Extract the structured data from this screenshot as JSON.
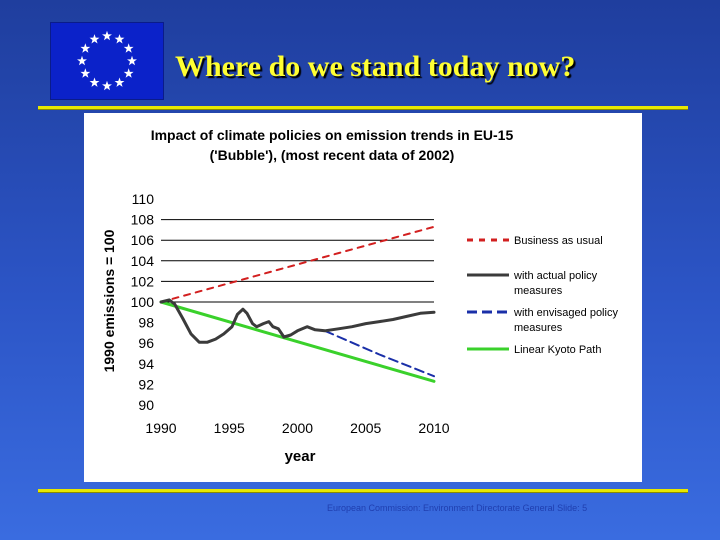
{
  "slide": {
    "title": "Where do we stand today now?",
    "footer": "European Commission: Environment Directorate General Slide: 5"
  },
  "colors": {
    "background_top": "#1f3e9e",
    "title": "#ffff33",
    "rule": "#e8e800",
    "flag_blue": "#0b22c9",
    "flag_star": "#ffffff"
  },
  "chart_data": {
    "type": "line",
    "title_line1": "Impact of climate policies on emission trends in EU-15",
    "title_line2": "('Bubble'), (most recent data of 2002)",
    "xlabel": "year",
    "ylabel": "1990 emissions = 100",
    "xlim": [
      1990,
      2010
    ],
    "ylim": [
      90,
      110
    ],
    "x_ticks": [
      "1990",
      "1995",
      "2000",
      "2005",
      "2010"
    ],
    "y_ticks": [
      "110",
      "108",
      "106",
      "104",
      "102",
      "100",
      "98",
      "96",
      "94",
      "92",
      "90"
    ],
    "gridlines": [
      100,
      102,
      104,
      106,
      108
    ],
    "legend_position": "right",
    "series": [
      {
        "name": "Business as usual",
        "color": "#d21f1f",
        "dash": "dashed",
        "points": [
          [
            1990,
            100
          ],
          [
            2010,
            107.3
          ]
        ]
      },
      {
        "name": "with actual policy measures",
        "color": "#3b3b3b",
        "dash": "solid",
        "points": [
          [
            1990,
            100.0
          ],
          [
            1990.6,
            100.2
          ],
          [
            1991,
            99.8
          ],
          [
            1991.6,
            98.4
          ],
          [
            1992.2,
            96.9
          ],
          [
            1992.8,
            96.1
          ],
          [
            1993.4,
            96.1
          ],
          [
            1994,
            96.4
          ],
          [
            1994.6,
            96.9
          ],
          [
            1995.2,
            97.6
          ],
          [
            1995.6,
            98.8
          ],
          [
            1996,
            99.3
          ],
          [
            1996.3,
            98.9
          ],
          [
            1996.7,
            97.9
          ],
          [
            1997,
            97.6
          ],
          [
            1997.5,
            97.9
          ],
          [
            1997.9,
            98.1
          ],
          [
            1998.2,
            97.6
          ],
          [
            1998.6,
            97.4
          ],
          [
            1999,
            96.6
          ],
          [
            1999.5,
            96.8
          ],
          [
            2000,
            97.2
          ],
          [
            2000.7,
            97.6
          ],
          [
            2001.3,
            97.3
          ],
          [
            2002,
            97.2
          ],
          [
            2003,
            97.4
          ],
          [
            2004,
            97.6
          ],
          [
            2005,
            97.9
          ],
          [
            2006,
            98.1
          ],
          [
            2007,
            98.3
          ],
          [
            2008,
            98.6
          ],
          [
            2009,
            98.9
          ],
          [
            2010,
            99.0
          ]
        ]
      },
      {
        "name": "with envisaged policy measures",
        "color": "#1a2fa8",
        "dash": "dashed",
        "points": [
          [
            2002,
            97.2
          ],
          [
            2006,
            94.9
          ],
          [
            2010,
            92.8
          ]
        ]
      },
      {
        "name": "Linear Kyoto Path",
        "color": "#3ad12b",
        "dash": "solid",
        "points": [
          [
            1990,
            100
          ],
          [
            2010,
            92.3
          ]
        ]
      }
    ]
  }
}
